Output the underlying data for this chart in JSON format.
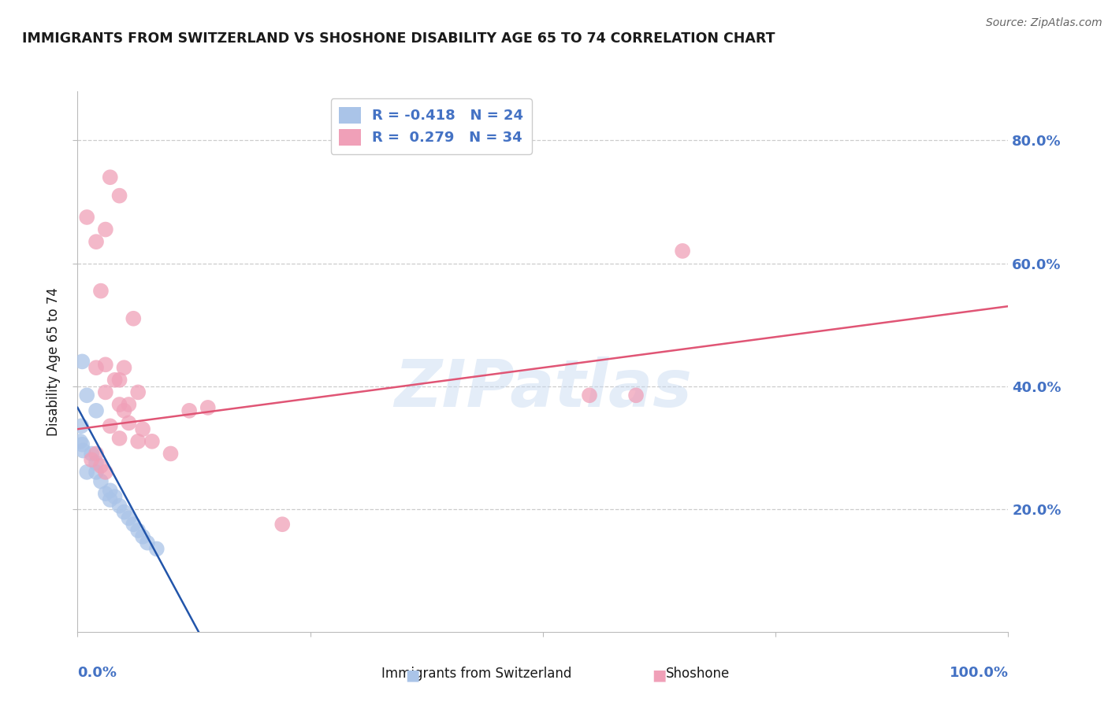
{
  "title": "IMMIGRANTS FROM SWITZERLAND VS SHOSHONE DISABILITY AGE 65 TO 74 CORRELATION CHART",
  "source": "Source: ZipAtlas.com",
  "ylabel": "Disability Age 65 to 74",
  "legend_r1": "R = -0.418",
  "legend_n1": "N = 24",
  "legend_r2": "R =  0.279",
  "legend_n2": "N = 34",
  "legend_label1": "Immigrants from Switzerland",
  "legend_label2": "Shoshone",
  "blue_color": "#aac4e8",
  "pink_color": "#f0a0b8",
  "blue_line_color": "#2255aa",
  "pink_line_color": "#e05575",
  "blue_scatter": [
    [
      0.5,
      44.0
    ],
    [
      1.0,
      26.0
    ],
    [
      1.5,
      29.0
    ],
    [
      2.0,
      27.5
    ],
    [
      2.0,
      26.0
    ],
    [
      2.5,
      24.5
    ],
    [
      3.0,
      22.5
    ],
    [
      3.5,
      21.5
    ],
    [
      3.5,
      23.0
    ],
    [
      4.0,
      22.0
    ],
    [
      4.5,
      20.5
    ],
    [
      5.0,
      19.5
    ],
    [
      5.5,
      18.5
    ],
    [
      6.0,
      17.5
    ],
    [
      6.5,
      16.5
    ],
    [
      7.0,
      15.5
    ],
    [
      7.5,
      14.5
    ],
    [
      8.5,
      13.5
    ],
    [
      0.3,
      31.0
    ],
    [
      0.4,
      33.5
    ],
    [
      0.5,
      30.5
    ],
    [
      0.6,
      29.5
    ],
    [
      2.0,
      36.0
    ],
    [
      1.0,
      38.5
    ]
  ],
  "pink_scatter": [
    [
      1.0,
      67.5
    ],
    [
      2.0,
      63.5
    ],
    [
      3.5,
      74.0
    ],
    [
      4.5,
      71.0
    ],
    [
      3.0,
      65.5
    ],
    [
      6.0,
      51.0
    ],
    [
      2.5,
      55.5
    ],
    [
      3.0,
      43.5
    ],
    [
      4.0,
      41.0
    ],
    [
      4.5,
      37.0
    ],
    [
      5.0,
      36.0
    ],
    [
      5.5,
      34.0
    ],
    [
      6.5,
      31.0
    ],
    [
      7.0,
      33.0
    ],
    [
      8.0,
      31.0
    ],
    [
      10.0,
      29.0
    ],
    [
      12.0,
      36.0
    ],
    [
      14.0,
      36.5
    ],
    [
      22.0,
      17.5
    ],
    [
      55.0,
      38.5
    ],
    [
      60.0,
      38.5
    ],
    [
      65.0,
      62.0
    ],
    [
      1.5,
      28.0
    ],
    [
      2.0,
      29.0
    ],
    [
      2.5,
      27.0
    ],
    [
      3.0,
      26.0
    ],
    [
      2.0,
      43.0
    ],
    [
      3.0,
      39.0
    ],
    [
      4.5,
      41.0
    ],
    [
      5.0,
      43.0
    ],
    [
      5.5,
      37.0
    ],
    [
      6.5,
      39.0
    ],
    [
      3.5,
      33.5
    ],
    [
      4.5,
      31.5
    ]
  ],
  "xlim": [
    0.0,
    100.0
  ],
  "ylim": [
    0.0,
    88.0
  ],
  "ytick_positions": [
    20.0,
    40.0,
    60.0,
    80.0
  ],
  "xtick_positions": [
    0.0,
    25.0,
    50.0,
    75.0,
    100.0
  ],
  "watermark": "ZIPatlas",
  "background_color": "#ffffff",
  "title_color": "#1a1a1a",
  "axis_color": "#bbbbbb",
  "grid_color": "#cccccc",
  "right_axis_color": "#4472c4",
  "blue_trend_x": [
    0.0,
    13.0
  ],
  "blue_trend_y": [
    36.5,
    0.0
  ],
  "pink_trend_x": [
    0.0,
    100.0
  ],
  "pink_trend_y": [
    33.0,
    53.0
  ]
}
